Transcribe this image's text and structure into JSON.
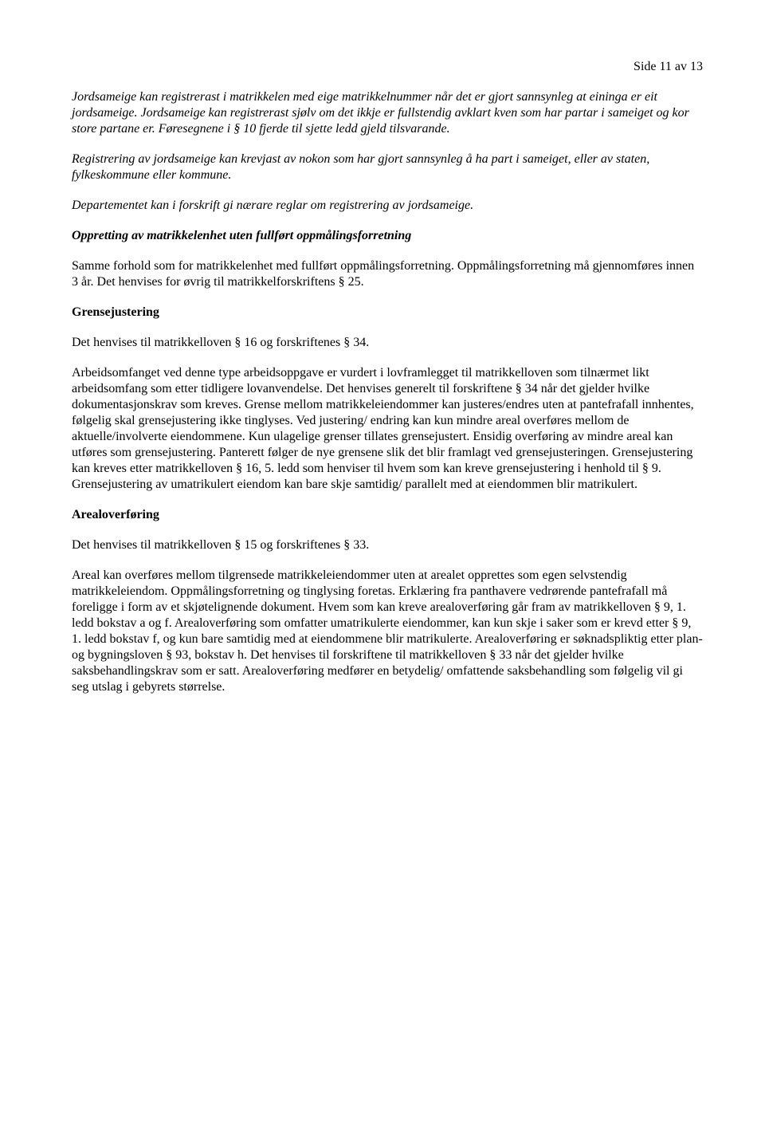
{
  "page_number": "Side 11 av 13",
  "p1": "Jordsameige kan registrerast i matrikkelen med eige matrikkelnummer når det er gjort sannsynleg at eininga er eit jordsameige. Jordsameige kan registrerast sjølv om det ikkje er fullstendig avklart kven som har partar i sameiget og kor store partane er. Føresegnene i § 10 fjerde til sjette ledd gjeld tilsvarande.",
  "p2": "Registrering av jordsameige kan krevjast av nokon som har gjort sannsynleg å ha part i sameiget, eller av staten, fylkeskommune eller kommune.",
  "p3": "Departementet kan i forskrift gi nærare reglar om registrering av jordsameige.",
  "h1": "Oppretting av matrikkelenhet uten fullført oppmålingsforretning",
  "p4": "Samme forhold som for matrikkelenhet med fullført oppmålingsforretning. Oppmålingsforretning må gjennomføres innen 3 år.  Det henvises for øvrig til matrikkelforskriftens § 25.",
  "h2": "Grensejustering",
  "p5": "Det henvises til matrikkelloven § 16 og forskriftenes § 34.",
  "p6": "Arbeidsomfanget ved denne type arbeidsoppgave er vurdert i lovframlegget til matrikkelloven som tilnærmet likt arbeidsomfang som etter tidligere lovanvendelse.  Det henvises generelt til forskriftene § 34 når det gjelder hvilke dokumentasjonskrav som kreves.  Grense mellom matrikkeleiendommer kan justeres/endres uten at pantefrafall innhentes, følgelig skal grensejustering ikke tinglyses. Ved justering/ endring kan kun mindre areal overføres mellom de aktuelle/involverte eiendommene.  Kun ulagelige grenser tillates grensejustert.  Ensidig overføring av mindre areal kan utføres som grensejustering.  Panterett følger de nye grensene slik det blir framlagt ved grensejusteringen.  Grensejustering kan kreves etter matrikkelloven § 16, 5. ledd som henviser til hvem som kan kreve grensejustering i henhold til § 9. Grensejustering av umatrikulert eiendom kan bare skje samtidig/ parallelt med at eiendommen blir matrikulert.",
  "h3": "Arealoverføring",
  "p7": "Det henvises til matrikkelloven § 15 og forskriftenes § 33.",
  "p8": "Areal kan overføres mellom tilgrensede matrikkeleiendommer uten at arealet opprettes som egen selvstendig matrikkeleiendom.  Oppmålingsforretning og tinglysing foretas.  Erklæring fra panthavere vedrørende pantefrafall må foreligge i form av et skjøtelignende dokument. Hvem som kan kreve arealoverføring går fram av matrikkelloven § 9, 1. ledd bokstav a og f. Arealoverføring som omfatter umatrikulerte eiendommer, kan kun skje i saker som er krevd etter § 9, 1. ledd bokstav f, og kun bare samtidig med at eiendommene blir matrikulerte. Arealoverføring er søknadspliktig etter plan- og bygningsloven § 93, bokstav h.  Det henvises til forskriftene til matrikkelloven § 33 når det gjelder hvilke saksbehandlingskrav som er satt. Arealoverføring medfører en betydelig/ omfattende saksbehandling som følgelig vil gi seg utslag i gebyrets størrelse."
}
